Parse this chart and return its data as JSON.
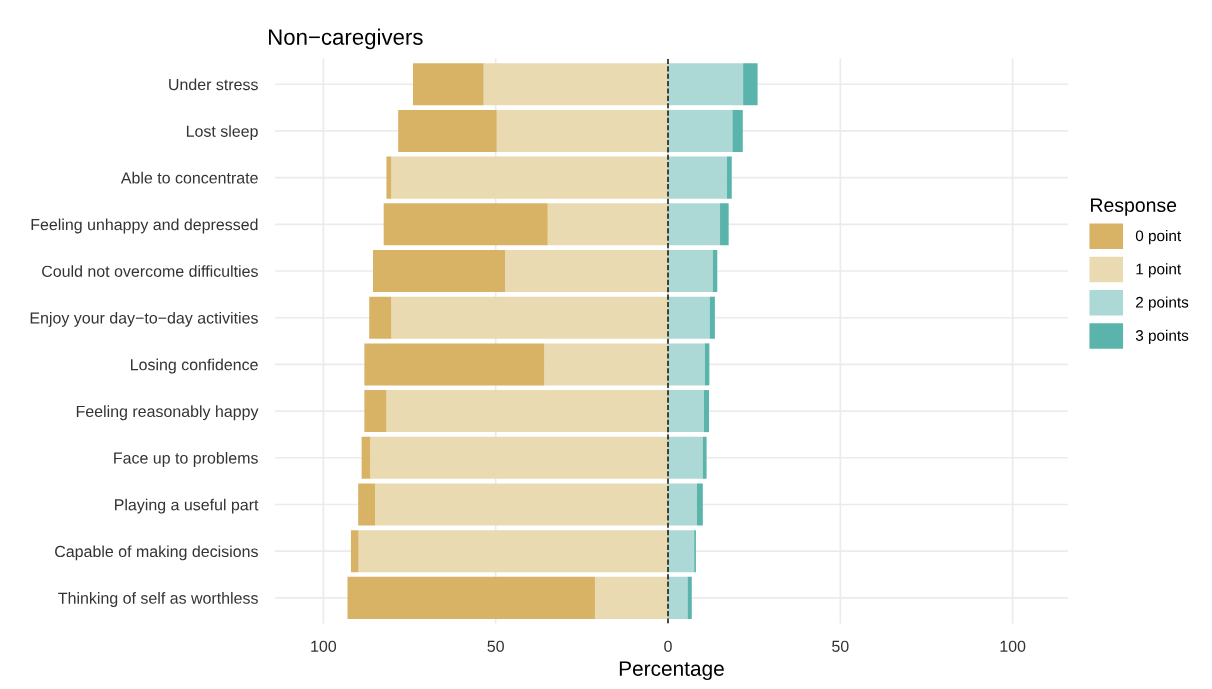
{
  "chart_data": {
    "type": "bar",
    "orientation": "horizontal",
    "stacked": true,
    "title": "Non−caregivers",
    "xlabel": "Percentage",
    "legend_title": "Response",
    "legend": "right",
    "grid": true,
    "categories": [
      "Under stress",
      "Lost sleep",
      "Able to concentrate",
      "Feeling unhappy and depressed",
      "Could not overcome difficulties",
      "Enjoy your day−to−day activities",
      "Losing confidence",
      "Feeling reasonably happy",
      "Face up to problems",
      "Playing a useful part",
      "Capable of making decisions",
      "Thinking of self as worthless"
    ],
    "series": [
      {
        "name": "1 point",
        "color": "#eadab2",
        "values": [
          -53.5,
          -49.7,
          -80.3,
          -34.9,
          -47.3,
          -80.3,
          -35.9,
          -81.7,
          -86.4,
          -85.0,
          -89.8,
          -21.2
        ]
      },
      {
        "name": "0 point",
        "color": "#d8b365",
        "values": [
          -20.5,
          -28.6,
          -1.4,
          -47.6,
          -38.3,
          -6.4,
          -52.2,
          -6.4,
          -2.5,
          -4.9,
          -2.2,
          -71.8
        ]
      },
      {
        "name": "2 points",
        "color": "#acd9d5",
        "values": [
          21.8,
          18.7,
          17.1,
          15.1,
          13.0,
          12.1,
          10.7,
          10.4,
          10.1,
          8.4,
          7.6,
          5.7
        ]
      },
      {
        "name": "3 points",
        "color": "#5ab4ac",
        "values": [
          4.2,
          3.0,
          1.4,
          2.5,
          1.3,
          1.5,
          1.3,
          1.5,
          1.1,
          1.7,
          0.5,
          1.2
        ]
      }
    ],
    "xlim": [
      -114,
      116
    ],
    "xticks": [
      {
        "value": -100,
        "label": "100"
      },
      {
        "value": -50,
        "label": "50"
      },
      0,
      50,
      100
    ],
    "ref_lines": [
      {
        "axis": "x",
        "value": 0,
        "color": "#000000",
        "line_style": "dashed"
      }
    ]
  }
}
